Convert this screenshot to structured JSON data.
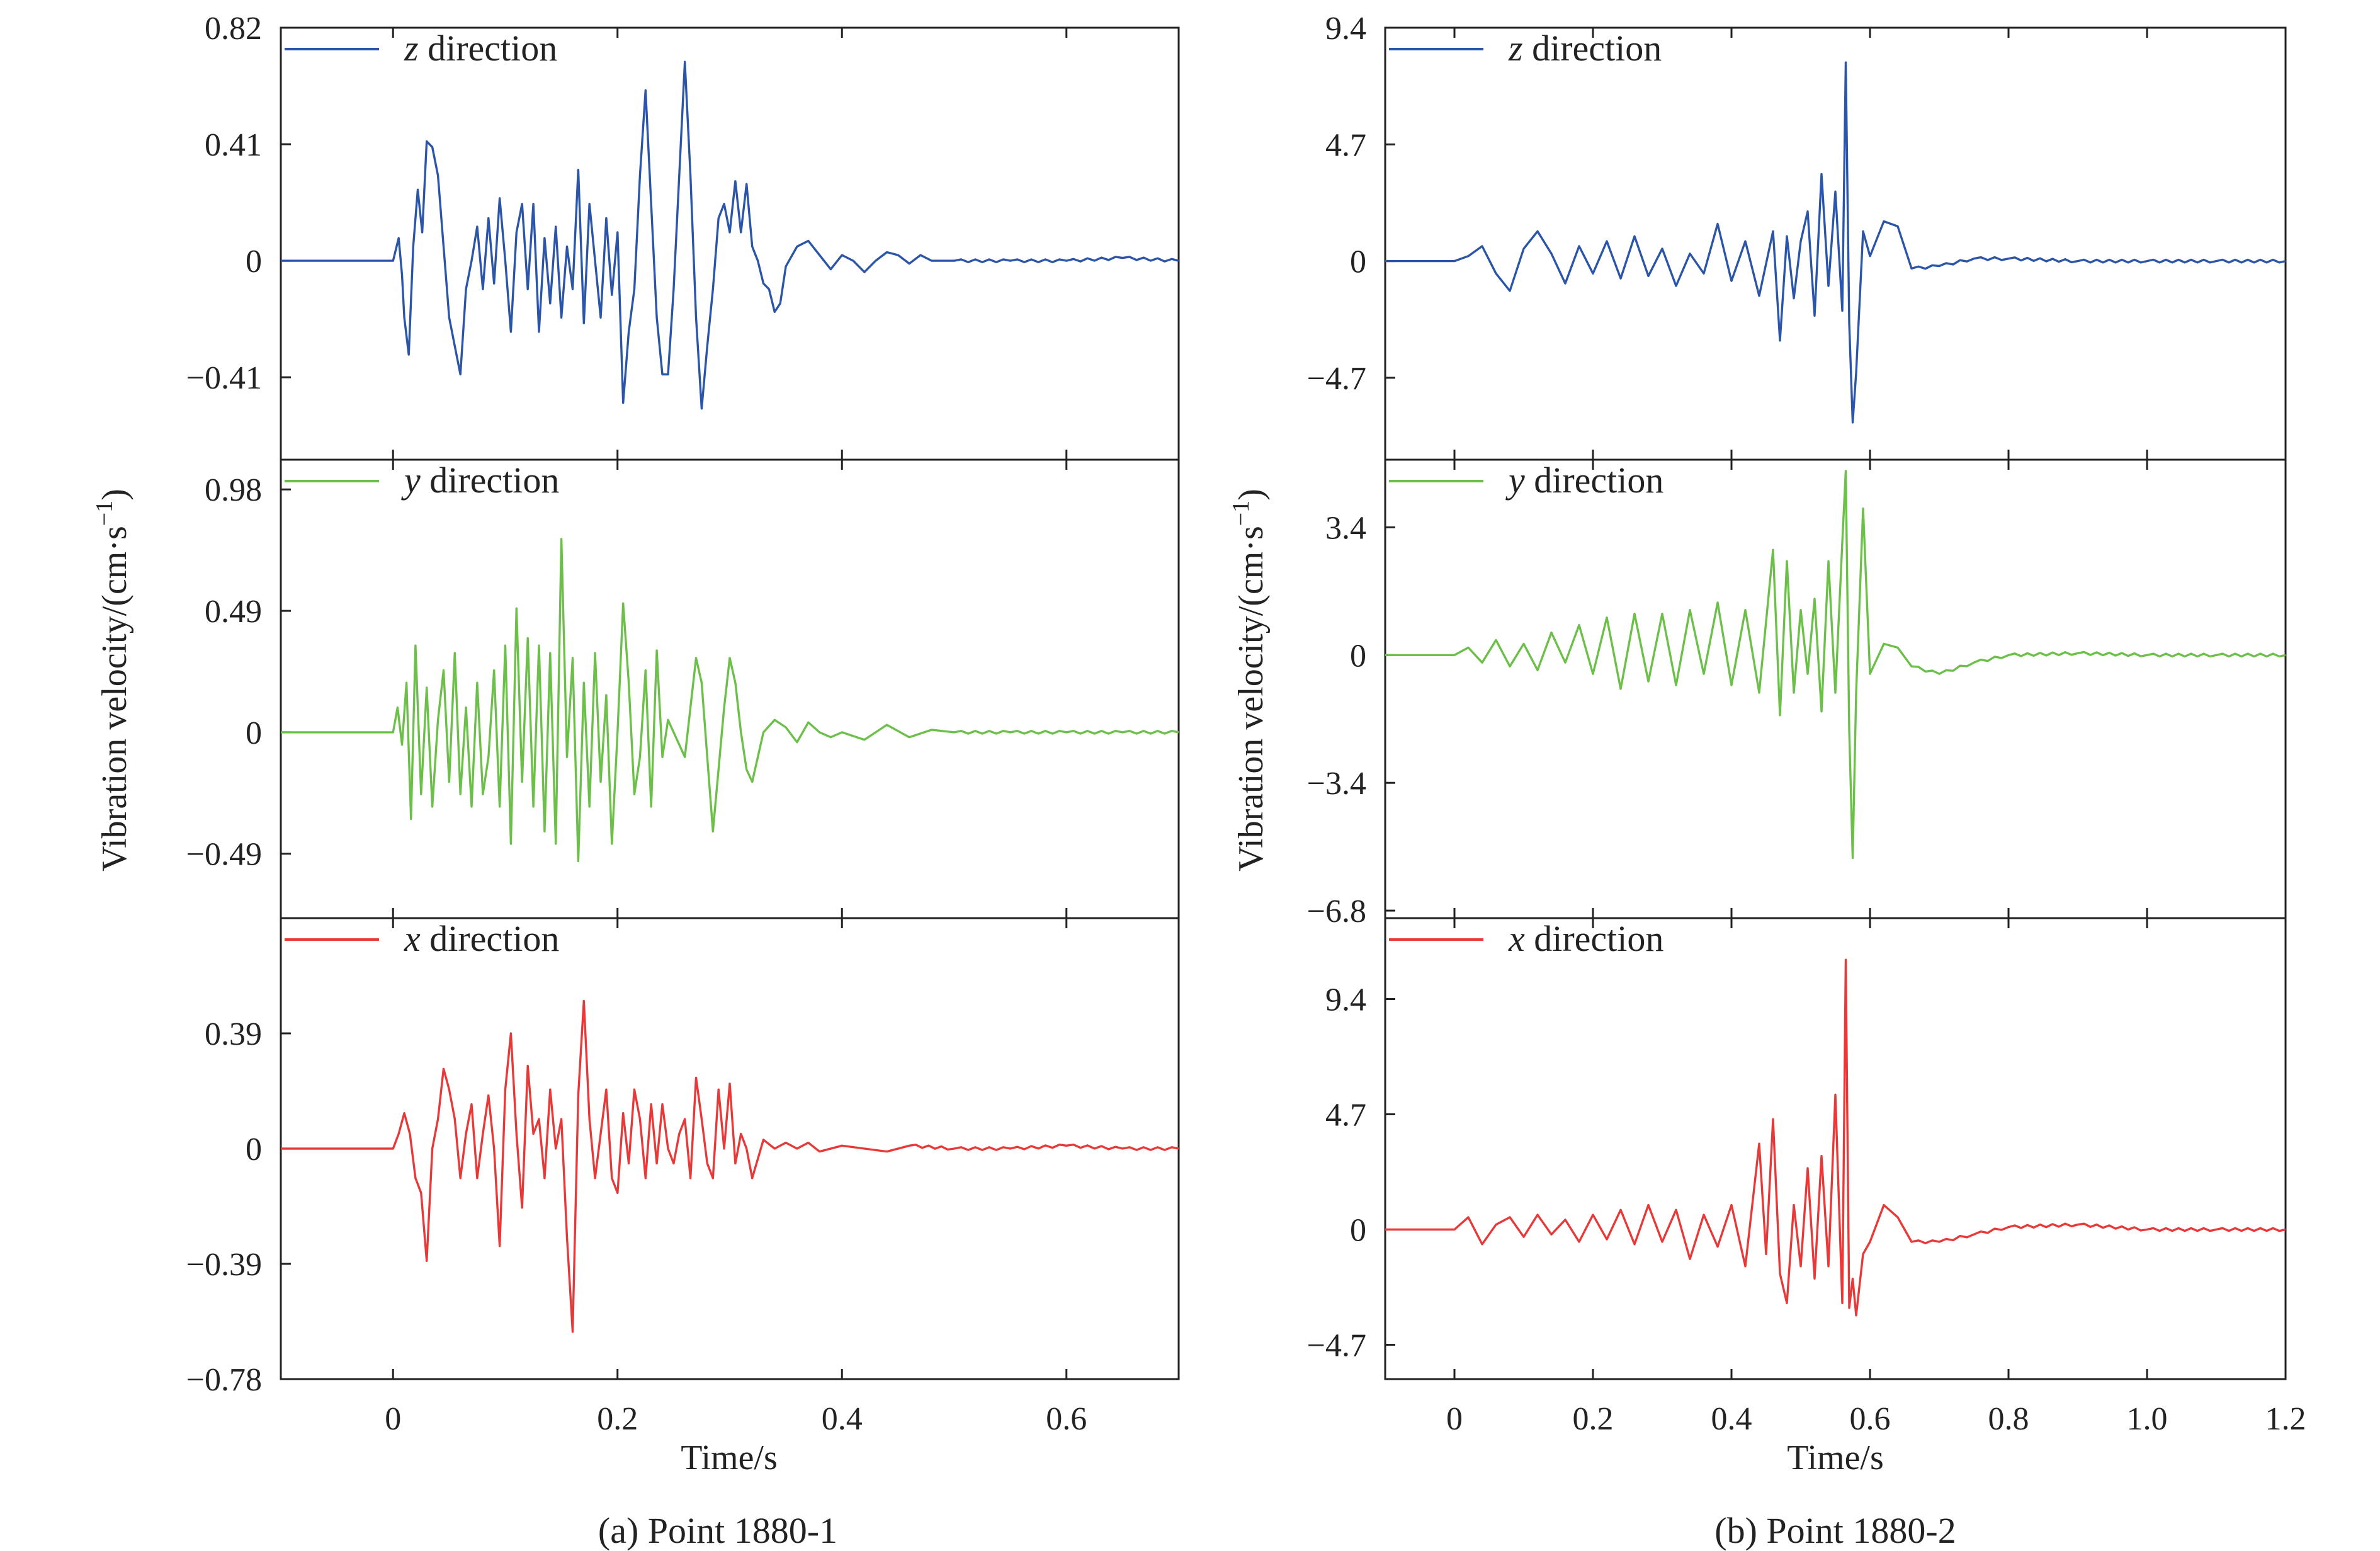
{
  "figure": {
    "captions": [
      "(a) Point 1880-1",
      "(b) Point 1880-2"
    ]
  },
  "chart_data": [
    {
      "type": "line",
      "caption": "(a) Point 1880-1",
      "xlabel": "Time/s",
      "ylabel_main": "Vibration velocity/(cm·s",
      "ylabel_sup": "−1",
      "ylabel_close": ")",
      "xlim": [
        -0.1,
        0.7
      ],
      "xticks": [
        0,
        0.2,
        0.4,
        0.6
      ],
      "xtick_labels": [
        "0",
        "0.2",
        "0.4",
        "0.6"
      ],
      "panels": [
        {
          "name": "z",
          "legend_var": "z",
          "legend_text": " direction",
          "color": "#2a55a8",
          "ylim": [
            -0.7,
            0.82
          ],
          "yticks": [
            0.82,
            0.41,
            0,
            -0.41
          ],
          "ytick_labels": [
            "0.82",
            "0.41",
            "0",
            "−0.41"
          ],
          "x": [
            -0.1,
            0.0,
            0.005,
            0.008,
            0.01,
            0.014,
            0.018,
            0.022,
            0.026,
            0.03,
            0.035,
            0.04,
            0.045,
            0.05,
            0.055,
            0.06,
            0.065,
            0.07,
            0.075,
            0.08,
            0.085,
            0.09,
            0.095,
            0.1,
            0.105,
            0.11,
            0.115,
            0.12,
            0.125,
            0.13,
            0.135,
            0.14,
            0.145,
            0.15,
            0.155,
            0.16,
            0.165,
            0.17,
            0.175,
            0.18,
            0.185,
            0.19,
            0.195,
            0.2,
            0.205,
            0.21,
            0.215,
            0.22,
            0.225,
            0.23,
            0.235,
            0.24,
            0.245,
            0.25,
            0.255,
            0.26,
            0.265,
            0.27,
            0.275,
            0.28,
            0.285,
            0.29,
            0.295,
            0.3,
            0.305,
            0.31,
            0.315,
            0.32,
            0.325,
            0.33,
            0.335,
            0.34,
            0.345,
            0.35,
            0.36,
            0.37,
            0.38,
            0.39,
            0.4,
            0.41,
            0.42,
            0.43,
            0.44,
            0.45,
            0.46,
            0.47,
            0.48,
            0.5,
            0.55,
            0.6,
            0.65,
            0.7
          ],
          "values": [
            0,
            0,
            0.08,
            -0.05,
            -0.2,
            -0.33,
            0.05,
            0.25,
            0.1,
            0.42,
            0.4,
            0.3,
            0.05,
            -0.2,
            -0.3,
            -0.4,
            -0.1,
            0.0,
            0.12,
            -0.1,
            0.15,
            -0.08,
            0.22,
            0.0,
            -0.25,
            0.1,
            0.2,
            -0.1,
            0.2,
            -0.25,
            0.08,
            -0.15,
            0.12,
            -0.2,
            0.05,
            -0.1,
            0.32,
            -0.22,
            0.2,
            0.0,
            -0.2,
            0.15,
            -0.12,
            0.1,
            -0.5,
            -0.25,
            -0.1,
            0.3,
            0.6,
            0.2,
            -0.2,
            -0.4,
            -0.4,
            -0.1,
            0.3,
            0.7,
            0.3,
            -0.2,
            -0.52,
            -0.3,
            -0.1,
            0.15,
            0.2,
            0.1,
            0.28,
            0.1,
            0.27,
            0.05,
            0.0,
            -0.08,
            -0.1,
            -0.18,
            -0.15,
            -0.02,
            0.05,
            0.07,
            0.02,
            -0.03,
            0.02,
            0.0,
            -0.04,
            0.0,
            0.03,
            0.02,
            -0.01,
            0.02,
            0.0,
            0.0,
            0.0,
            0.0,
            0.01,
            0.0
          ]
        },
        {
          "name": "y",
          "legend_var": "y",
          "legend_text": " direction",
          "color": "#6cc04a",
          "ylim": [
            -0.75,
            1.1
          ],
          "yticks": [
            0.98,
            0.49,
            0,
            -0.49
          ],
          "ytick_labels": [
            "0.98",
            "0.49",
            "0",
            "−0.49"
          ],
          "x": [
            -0.1,
            0.0,
            0.004,
            0.008,
            0.012,
            0.016,
            0.02,
            0.025,
            0.03,
            0.035,
            0.04,
            0.045,
            0.05,
            0.055,
            0.06,
            0.065,
            0.07,
            0.075,
            0.08,
            0.085,
            0.09,
            0.095,
            0.1,
            0.105,
            0.11,
            0.115,
            0.12,
            0.125,
            0.13,
            0.135,
            0.14,
            0.145,
            0.15,
            0.155,
            0.16,
            0.165,
            0.17,
            0.175,
            0.18,
            0.185,
            0.19,
            0.195,
            0.2,
            0.205,
            0.21,
            0.215,
            0.22,
            0.225,
            0.23,
            0.235,
            0.24,
            0.245,
            0.25,
            0.255,
            0.26,
            0.265,
            0.27,
            0.275,
            0.28,
            0.285,
            0.29,
            0.295,
            0.3,
            0.305,
            0.31,
            0.315,
            0.32,
            0.33,
            0.34,
            0.35,
            0.36,
            0.37,
            0.38,
            0.39,
            0.4,
            0.42,
            0.44,
            0.46,
            0.48,
            0.5,
            0.55,
            0.6,
            0.65,
            0.7
          ],
          "values": [
            0,
            0,
            0.1,
            -0.05,
            0.2,
            -0.35,
            0.35,
            -0.25,
            0.18,
            -0.3,
            0.05,
            0.25,
            -0.2,
            0.32,
            -0.25,
            0.1,
            -0.3,
            0.2,
            -0.25,
            -0.1,
            0.25,
            -0.3,
            0.35,
            -0.45,
            0.5,
            -0.2,
            0.38,
            -0.3,
            0.35,
            -0.4,
            0.32,
            -0.45,
            0.78,
            -0.1,
            0.3,
            -0.52,
            0.2,
            -0.3,
            0.32,
            -0.2,
            0.15,
            -0.45,
            0.0,
            0.52,
            0.2,
            -0.25,
            -0.1,
            0.25,
            -0.3,
            0.33,
            -0.1,
            0.05,
            0.0,
            -0.05,
            -0.1,
            0.1,
            0.3,
            0.2,
            -0.1,
            -0.4,
            -0.15,
            0.1,
            0.3,
            0.2,
            0.0,
            -0.15,
            -0.2,
            0.0,
            0.05,
            0.02,
            -0.04,
            0.04,
            0.0,
            -0.02,
            0.0,
            -0.03,
            0.03,
            -0.02,
            0.01,
            0.0,
            0.0,
            0.0,
            0.0,
            0.0
          ]
        },
        {
          "name": "x",
          "legend_var": "x",
          "legend_text": " direction",
          "color": "#e83838",
          "ylim": [
            -0.78,
            0.78
          ],
          "yticks": [
            0.39,
            0,
            -0.39,
            -0.78
          ],
          "ytick_labels": [
            "0.39",
            "0",
            "−0.39",
            "−0.78"
          ],
          "x": [
            -0.1,
            0.0,
            0.005,
            0.01,
            0.015,
            0.02,
            0.025,
            0.03,
            0.035,
            0.04,
            0.045,
            0.05,
            0.055,
            0.06,
            0.065,
            0.07,
            0.075,
            0.08,
            0.085,
            0.09,
            0.095,
            0.1,
            0.105,
            0.11,
            0.115,
            0.12,
            0.125,
            0.13,
            0.135,
            0.14,
            0.145,
            0.15,
            0.155,
            0.16,
            0.165,
            0.17,
            0.175,
            0.18,
            0.185,
            0.19,
            0.195,
            0.2,
            0.205,
            0.21,
            0.215,
            0.22,
            0.225,
            0.23,
            0.235,
            0.24,
            0.245,
            0.25,
            0.255,
            0.26,
            0.265,
            0.27,
            0.275,
            0.28,
            0.285,
            0.29,
            0.295,
            0.3,
            0.305,
            0.31,
            0.315,
            0.32,
            0.33,
            0.34,
            0.35,
            0.36,
            0.37,
            0.38,
            0.4,
            0.42,
            0.44,
            0.46,
            0.5,
            0.55,
            0.6,
            0.65,
            0.7
          ],
          "values": [
            0,
            0,
            0.05,
            0.12,
            0.05,
            -0.1,
            -0.15,
            -0.38,
            0.0,
            0.1,
            0.27,
            0.2,
            0.1,
            -0.1,
            0.05,
            0.15,
            -0.1,
            0.05,
            0.18,
            0.0,
            -0.33,
            0.2,
            0.39,
            0.05,
            -0.2,
            0.28,
            0.05,
            0.1,
            -0.1,
            0.2,
            0.0,
            0.1,
            -0.3,
            -0.62,
            0.18,
            0.5,
            0.1,
            -0.1,
            0.05,
            0.2,
            -0.1,
            -0.15,
            0.12,
            -0.05,
            0.2,
            0.1,
            -0.1,
            0.15,
            -0.05,
            0.15,
            0.0,
            -0.05,
            0.05,
            0.1,
            -0.1,
            0.24,
            0.1,
            -0.05,
            -0.1,
            0.2,
            0.0,
            0.22,
            -0.05,
            0.05,
            0.0,
            -0.1,
            0.03,
            0.0,
            0.02,
            0.0,
            0.02,
            -0.01,
            0.01,
            0.0,
            -0.01,
            0.01,
            0.0,
            0.0,
            0.01,
            0.0,
            0.0
          ]
        }
      ]
    },
    {
      "type": "line",
      "caption": "(b) Point 1880-2",
      "xlabel": "Time/s",
      "ylabel_main": "Vibration velocity/(cm·s",
      "ylabel_sup": "−1",
      "ylabel_close": ")",
      "xlim": [
        -0.1,
        1.2
      ],
      "xticks": [
        0,
        0.2,
        0.4,
        0.6,
        0.8,
        1.0,
        1.2
      ],
      "xtick_labels": [
        "0",
        "0.2",
        "0.4",
        "0.6",
        "0.8",
        "1.0",
        "1.2"
      ],
      "panels": [
        {
          "name": "z",
          "legend_var": "z",
          "legend_text": " direction",
          "color": "#2a55a8",
          "ylim": [
            -8.0,
            9.4
          ],
          "yticks": [
            9.4,
            4.7,
            0,
            -4.7
          ],
          "ytick_labels": [
            "9.4",
            "4.7",
            "0",
            "−4.7"
          ],
          "x": [
            -0.1,
            0.0,
            0.02,
            0.04,
            0.06,
            0.08,
            0.1,
            0.12,
            0.14,
            0.16,
            0.18,
            0.2,
            0.22,
            0.24,
            0.26,
            0.28,
            0.3,
            0.32,
            0.34,
            0.36,
            0.38,
            0.4,
            0.42,
            0.44,
            0.46,
            0.47,
            0.48,
            0.49,
            0.5,
            0.51,
            0.52,
            0.53,
            0.54,
            0.55,
            0.56,
            0.565,
            0.57,
            0.575,
            0.58,
            0.59,
            0.6,
            0.62,
            0.64,
            0.66,
            0.7,
            0.75,
            0.8,
            0.9,
            1.0,
            1.1,
            1.2
          ],
          "values": [
            0,
            0,
            0.2,
            0.6,
            -0.5,
            -1.2,
            0.5,
            1.2,
            0.3,
            -0.9,
            0.6,
            -0.5,
            0.8,
            -0.7,
            1.0,
            -0.6,
            0.5,
            -1.0,
            0.3,
            -0.5,
            1.5,
            -0.8,
            0.8,
            -1.4,
            1.2,
            -3.2,
            1.0,
            -1.5,
            0.8,
            2.0,
            -2.2,
            3.5,
            -1.0,
            2.8,
            -2.0,
            8.0,
            -2.5,
            -6.5,
            -4.5,
            1.2,
            0.2,
            1.6,
            1.4,
            -0.3,
            -0.2,
            0.1,
            0.1,
            0.0,
            0.0,
            0.0,
            0.0
          ]
        },
        {
          "name": "y",
          "legend_var": "y",
          "legend_text": " direction",
          "color": "#6cc04a",
          "ylim": [
            -7.0,
            5.2
          ],
          "yticks": [
            3.4,
            0,
            -3.4,
            -6.8
          ],
          "ytick_labels": [
            "3.4",
            "0",
            "−3.4",
            "−6.8"
          ],
          "x": [
            -0.1,
            0.0,
            0.02,
            0.04,
            0.06,
            0.08,
            0.1,
            0.12,
            0.14,
            0.16,
            0.18,
            0.2,
            0.22,
            0.24,
            0.26,
            0.28,
            0.3,
            0.32,
            0.34,
            0.36,
            0.38,
            0.4,
            0.42,
            0.44,
            0.46,
            0.47,
            0.48,
            0.49,
            0.5,
            0.51,
            0.52,
            0.53,
            0.54,
            0.55,
            0.56,
            0.565,
            0.57,
            0.575,
            0.58,
            0.59,
            0.6,
            0.62,
            0.64,
            0.66,
            0.7,
            0.75,
            0.8,
            0.9,
            1.0,
            1.1,
            1.2
          ],
          "values": [
            0,
            0,
            0.2,
            -0.2,
            0.4,
            -0.3,
            0.3,
            -0.4,
            0.6,
            -0.2,
            0.8,
            -0.5,
            1.0,
            -0.9,
            1.1,
            -0.7,
            1.1,
            -0.8,
            1.2,
            -0.5,
            1.4,
            -0.8,
            1.2,
            -1.0,
            2.8,
            -1.6,
            2.5,
            -1.0,
            1.2,
            -0.5,
            1.5,
            -1.5,
            2.5,
            -1.0,
            3.0,
            4.9,
            -2.0,
            -5.4,
            -1.0,
            3.9,
            -0.5,
            0.3,
            0.2,
            -0.3,
            -0.5,
            -0.2,
            0.0,
            0.05,
            0.0,
            0.0,
            0.0
          ]
        },
        {
          "name": "x",
          "legend_var": "x",
          "legend_text": " direction",
          "color": "#e83838",
          "ylim": [
            -6.1,
            12.7
          ],
          "yticks": [
            9.4,
            4.7,
            0,
            -4.7
          ],
          "ytick_labels": [
            "9.4",
            "4.7",
            "0",
            "−4.7"
          ],
          "x": [
            -0.1,
            0.0,
            0.02,
            0.04,
            0.06,
            0.08,
            0.1,
            0.12,
            0.14,
            0.16,
            0.18,
            0.2,
            0.22,
            0.24,
            0.26,
            0.28,
            0.3,
            0.32,
            0.34,
            0.36,
            0.38,
            0.4,
            0.42,
            0.44,
            0.45,
            0.46,
            0.47,
            0.48,
            0.49,
            0.5,
            0.51,
            0.52,
            0.53,
            0.54,
            0.55,
            0.56,
            0.565,
            0.57,
            0.575,
            0.58,
            0.59,
            0.6,
            0.62,
            0.64,
            0.66,
            0.7,
            0.75,
            0.8,
            0.9,
            1.0,
            1.1,
            1.2
          ],
          "values": [
            0,
            0,
            0.5,
            -0.6,
            0.2,
            0.5,
            -0.3,
            0.6,
            -0.2,
            0.4,
            -0.5,
            0.6,
            -0.4,
            0.8,
            -0.6,
            1.0,
            -0.5,
            0.8,
            -1.2,
            0.6,
            -0.7,
            1.0,
            -1.5,
            3.5,
            -1.0,
            4.5,
            -1.8,
            -3.0,
            1.0,
            -1.5,
            2.5,
            -2.0,
            3.0,
            -1.5,
            5.5,
            -3.0,
            11.0,
            -3.2,
            -2.0,
            -3.5,
            -1.0,
            -0.5,
            1.0,
            0.5,
            -0.5,
            -0.5,
            -0.2,
            0.1,
            0.2,
            0.0,
            0.0,
            0.0
          ]
        }
      ]
    }
  ]
}
